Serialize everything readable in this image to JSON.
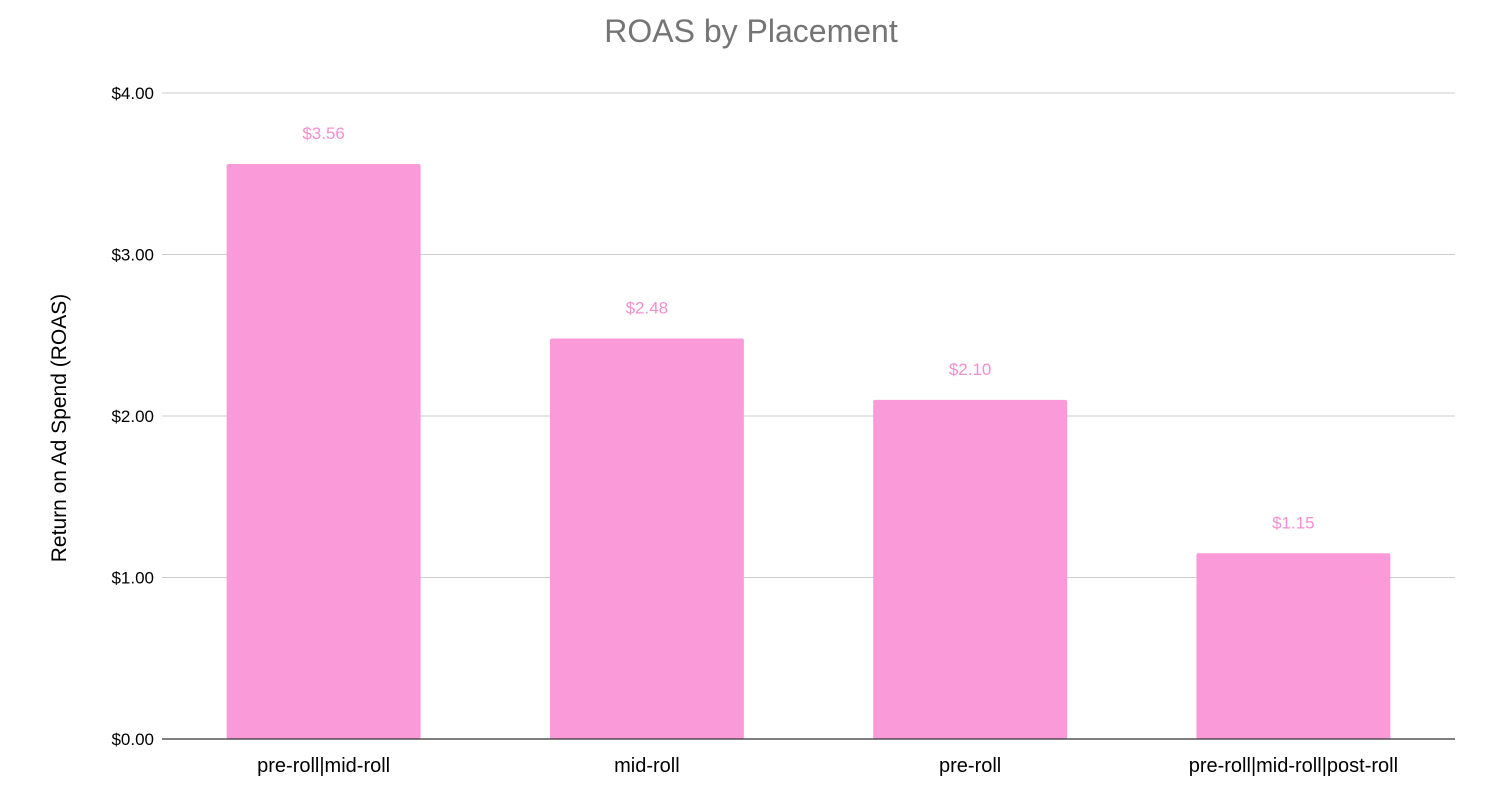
{
  "chart_data": {
    "type": "bar",
    "title": "ROAS by Placement",
    "xlabel": "",
    "ylabel": "Return on Ad Spend (ROAS)",
    "categories": [
      "pre-roll|mid-roll",
      "mid-roll",
      "pre-roll",
      "pre-roll|mid-roll|post-roll"
    ],
    "values": [
      3.56,
      2.48,
      2.1,
      1.15
    ],
    "data_labels": [
      "$3.56",
      "$2.48",
      "$2.10",
      "$1.15"
    ],
    "ylim": [
      0,
      4
    ],
    "y_ticks": [
      0,
      1,
      2,
      3,
      4
    ],
    "y_tick_labels": [
      "$0.00",
      "$1.00",
      "$2.00",
      "$3.00",
      "$4.00"
    ],
    "grid": true,
    "legend": "none",
    "colors": {
      "bar": "#fb9ad8",
      "data_label": "#f48fcf",
      "title": "#757575"
    }
  }
}
